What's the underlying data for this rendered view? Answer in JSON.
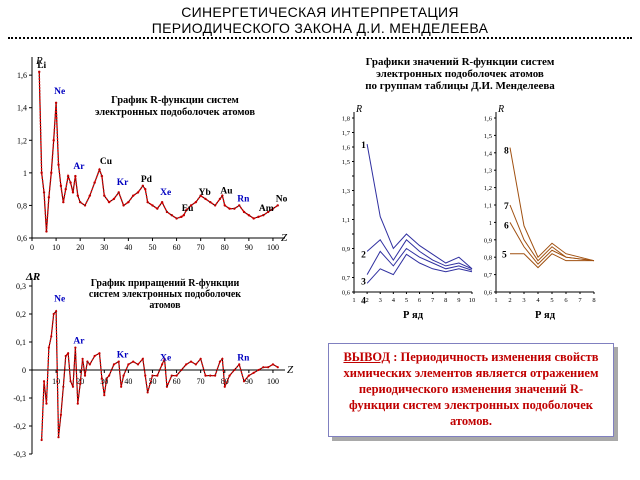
{
  "header": {
    "line1": "СИНЕРГЕТИЧЕСКАЯ ИНТЕРПРЕТАЦИЯ",
    "line2": "ПЕРИОДИЧЕСКОГО ЗАКОНА Д.И. МЕНДЕЛЕЕВА"
  },
  "conclusion": {
    "label": "ВЫВОД",
    "text": " : Периодичность изменения свойств химических элементов является отражением периодического изменения значений R-функции систем электронных подоболочек атомов."
  },
  "colors": {
    "line": "#e00000",
    "markers": "#c00000",
    "blue_label": "#0000c0",
    "conclusion": "#c00000",
    "series_purple": "#3030a0",
    "series_brown": "#a05010"
  },
  "chart_data": [
    {
      "type": "line",
      "title": "График R-функции систем электронных подоболочек атомов",
      "title_lines": [
        "График R-функции систем",
        "электронных подоболочек атомов"
      ],
      "ylabel": "R",
      "xlabel": "Z",
      "xlim": [
        0,
        105
      ],
      "ylim": [
        0.6,
        1.65
      ],
      "xticks": [
        0,
        10,
        20,
        30,
        40,
        50,
        60,
        70,
        80,
        90,
        100
      ],
      "yticks": [
        0.6,
        0.8,
        1,
        1.2,
        1.4,
        1.6
      ],
      "ytick_labels": [
        "0,6",
        "0,8",
        "1",
        "1,2",
        "1,4",
        "1,6"
      ],
      "x": [
        3,
        4,
        5,
        6,
        7,
        8,
        9,
        10,
        11,
        12,
        13,
        14,
        15,
        16,
        17,
        18,
        19,
        20,
        22,
        24,
        26,
        28,
        29,
        30,
        32,
        34,
        36,
        38,
        40,
        42,
        44,
        46,
        47,
        48,
        50,
        52,
        54,
        56,
        58,
        60,
        62,
        63,
        64,
        66,
        68,
        70,
        72,
        74,
        76,
        78,
        79,
        80,
        82,
        84,
        86,
        88,
        90,
        92,
        94,
        96,
        98,
        100,
        102
      ],
      "y": [
        1.62,
        1.0,
        0.88,
        0.64,
        0.85,
        1.0,
        1.2,
        1.43,
        1.05,
        0.92,
        0.82,
        0.9,
        0.98,
        0.94,
        0.88,
        0.98,
        0.86,
        0.82,
        0.8,
        0.86,
        0.94,
        1.02,
        0.98,
        0.86,
        0.82,
        0.84,
        0.88,
        0.8,
        0.82,
        0.86,
        0.88,
        0.92,
        0.9,
        0.82,
        0.8,
        0.78,
        0.82,
        0.76,
        0.74,
        0.72,
        0.73,
        0.74,
        0.77,
        0.8,
        0.82,
        0.86,
        0.84,
        0.82,
        0.8,
        0.84,
        0.86,
        0.8,
        0.78,
        0.78,
        0.8,
        0.76,
        0.74,
        0.72,
        0.73,
        0.74,
        0.76,
        0.78,
        0.8
      ],
      "labels": [
        {
          "text": "Li",
          "x": 3,
          "y": 1.62,
          "color": "#000000"
        },
        {
          "text": "Ne",
          "x": 10,
          "y": 1.46,
          "color": "#0000c0"
        },
        {
          "text": "Ar",
          "x": 18,
          "y": 1.0,
          "color": "#0000c0"
        },
        {
          "text": "Cu",
          "x": 29,
          "y": 1.03,
          "color": "#000000"
        },
        {
          "text": "Kr",
          "x": 36,
          "y": 0.9,
          "color": "#0000c0"
        },
        {
          "text": "Pd",
          "x": 46,
          "y": 0.92,
          "color": "#000000"
        },
        {
          "text": "Xe",
          "x": 54,
          "y": 0.84,
          "color": "#0000c0"
        },
        {
          "text": "Eu",
          "x": 63,
          "y": 0.74,
          "color": "#000000"
        },
        {
          "text": "Yb",
          "x": 70,
          "y": 0.84,
          "color": "#000000"
        },
        {
          "text": "Au",
          "x": 79,
          "y": 0.85,
          "color": "#000000"
        },
        {
          "text": "Rn",
          "x": 86,
          "y": 0.8,
          "color": "#0000c0"
        },
        {
          "text": "Am",
          "x": 95,
          "y": 0.74,
          "color": "#000000"
        },
        {
          "text": "No",
          "x": 102,
          "y": 0.8,
          "color": "#000000"
        }
      ]
    },
    {
      "type": "line",
      "title": "График приращений R-функции систем электронных подоболочек атомов",
      "title_lines": [
        "График приращений R-функции",
        "систем электронных подоболочек",
        "атомов"
      ],
      "ylabel": "ΔR",
      "xlabel": "Z",
      "xlim": [
        0,
        105
      ],
      "ylim": [
        -0.3,
        0.3
      ],
      "xticks": [
        10,
        20,
        30,
        40,
        50,
        60,
        70,
        80,
        90,
        100
      ],
      "yticks": [
        -0.3,
        -0.2,
        -0.1,
        0,
        0.1,
        0.2,
        0.3
      ],
      "ytick_labels": [
        "-0,3",
        "-0,2",
        "-0,1",
        "0",
        "0,1",
        "0,2",
        "0,3"
      ],
      "x": [
        4,
        5,
        6,
        7,
        8,
        9,
        10,
        11,
        12,
        13,
        14,
        15,
        16,
        17,
        18,
        19,
        20,
        21,
        22,
        23,
        24,
        26,
        28,
        29,
        30,
        31,
        32,
        34,
        36,
        37,
        38,
        40,
        42,
        44,
        46,
        47,
        48,
        50,
        52,
        54,
        55,
        56,
        58,
        60,
        62,
        64,
        66,
        68,
        70,
        72,
        74,
        76,
        78,
        79,
        80,
        82,
        84,
        86,
        88,
        90,
        92,
        94,
        96,
        98,
        100,
        102
      ],
      "y": [
        -0.25,
        -0.04,
        -0.12,
        0.08,
        0.12,
        0.2,
        0.21,
        -0.24,
        -0.16,
        -0.06,
        0.05,
        0.06,
        -0.04,
        -0.06,
        0.08,
        -0.12,
        -0.05,
        0.04,
        -0.02,
        0.03,
        0.02,
        0.05,
        0.06,
        -0.03,
        -0.09,
        -0.03,
        -0.02,
        0.02,
        0.03,
        -0.06,
        -0.02,
        0.02,
        0.03,
        0.02,
        0.04,
        -0.02,
        -0.08,
        -0.02,
        -0.02,
        0.02,
        0.04,
        -0.06,
        -0.02,
        -0.02,
        0.0,
        0.02,
        0.03,
        0.02,
        0.04,
        -0.02,
        -0.02,
        -0.02,
        0.03,
        0.04,
        -0.06,
        -0.02,
        0.0,
        0.02,
        -0.04,
        -0.02,
        -0.01,
        0.0,
        0.01,
        0.01,
        0.02,
        0.01
      ],
      "labels": [
        {
          "text": "Ne",
          "x": 10,
          "y": 0.23,
          "color": "#0000c0"
        },
        {
          "text": "Ar",
          "x": 18,
          "y": 0.08,
          "color": "#0000c0"
        },
        {
          "text": "Kr",
          "x": 36,
          "y": 0.03,
          "color": "#0000c0"
        },
        {
          "text": "Xe",
          "x": 54,
          "y": 0.02,
          "color": "#0000c0"
        },
        {
          "text": "Rn",
          "x": 86,
          "y": 0.02,
          "color": "#0000c0"
        }
      ]
    },
    {
      "type": "line",
      "title": "Графики значений R-функции систем электронных подоболочек атомов по группам таблицы Д.И. Менделеева",
      "title_lines": [
        "Графики значений R-функции систем",
        "электронных подоболочек атомов",
        "по группам таблицы Д.И. Менделеева"
      ],
      "ylabel": "R",
      "xlabel": "Р яд",
      "xlim": [
        1,
        10
      ],
      "ylim": [
        0.6,
        1.8
      ],
      "xticks": [
        1,
        2,
        3,
        4,
        5,
        6,
        7,
        8,
        9,
        10
      ],
      "yticks": [
        0.6,
        0.7,
        0.8,
        0.9,
        1.0,
        1.1,
        1.2,
        1.3,
        1.4,
        1.5,
        1.6,
        1.7,
        1.8
      ],
      "ytick_labels": [
        "0,6",
        "0,7",
        "",
        "0,9",
        "",
        "1,1",
        "",
        "1,3",
        "",
        "1,5",
        "1,6",
        "1,7",
        "1,8"
      ],
      "x": [
        2,
        3,
        4,
        5,
        6,
        7,
        8,
        9,
        10
      ],
      "series": [
        {
          "name": "1",
          "values": [
            1.62,
            1.12,
            0.9,
            1.0,
            0.92,
            0.86,
            0.8,
            0.84,
            0.76
          ]
        },
        {
          "name": "2",
          "values": [
            0.88,
            0.96,
            0.82,
            0.96,
            0.88,
            0.82,
            0.78,
            0.8,
            0.76
          ]
        },
        {
          "name": "3",
          "values": [
            0.72,
            0.88,
            0.78,
            0.9,
            0.84,
            0.8,
            0.76,
            0.78,
            0.75
          ]
        },
        {
          "name": "4",
          "values": [
            0.66,
            0.76,
            0.72,
            0.86,
            0.8,
            0.76,
            0.74,
            0.76,
            0.74
          ]
        }
      ],
      "color": "#3030a0"
    },
    {
      "type": "line",
      "ylabel": "R",
      "xlabel": "Р яд",
      "xlim": [
        1,
        8
      ],
      "ylim": [
        0.6,
        1.6
      ],
      "xticks": [
        1,
        2,
        3,
        4,
        5,
        6,
        7,
        8
      ],
      "yticks": [
        0.6,
        0.7,
        0.8,
        0.9,
        1.0,
        1.1,
        1.2,
        1.3,
        1.4,
        1.5,
        1.6
      ],
      "ytick_labels": [
        "0,6",
        "0,7",
        "0,8",
        "0,9",
        "1",
        "1,1",
        "1,2",
        "1,3",
        "1,4",
        "1,5",
        "1,6"
      ],
      "x": [
        2,
        3,
        4,
        5,
        6,
        7,
        8
      ],
      "series": [
        {
          "name": "8",
          "values": [
            1.43,
            0.98,
            0.8,
            0.88,
            0.82,
            0.8,
            0.78
          ]
        },
        {
          "name": "7",
          "values": [
            1.1,
            0.9,
            0.78,
            0.86,
            0.8,
            0.79,
            0.78
          ]
        },
        {
          "name": "6",
          "values": [
            1.0,
            0.86,
            0.76,
            0.84,
            0.8,
            0.79,
            0.78
          ]
        },
        {
          "name": "5",
          "values": [
            0.82,
            0.82,
            0.74,
            0.82,
            0.78,
            0.78,
            0.78
          ]
        }
      ],
      "color": "#a05010"
    }
  ]
}
